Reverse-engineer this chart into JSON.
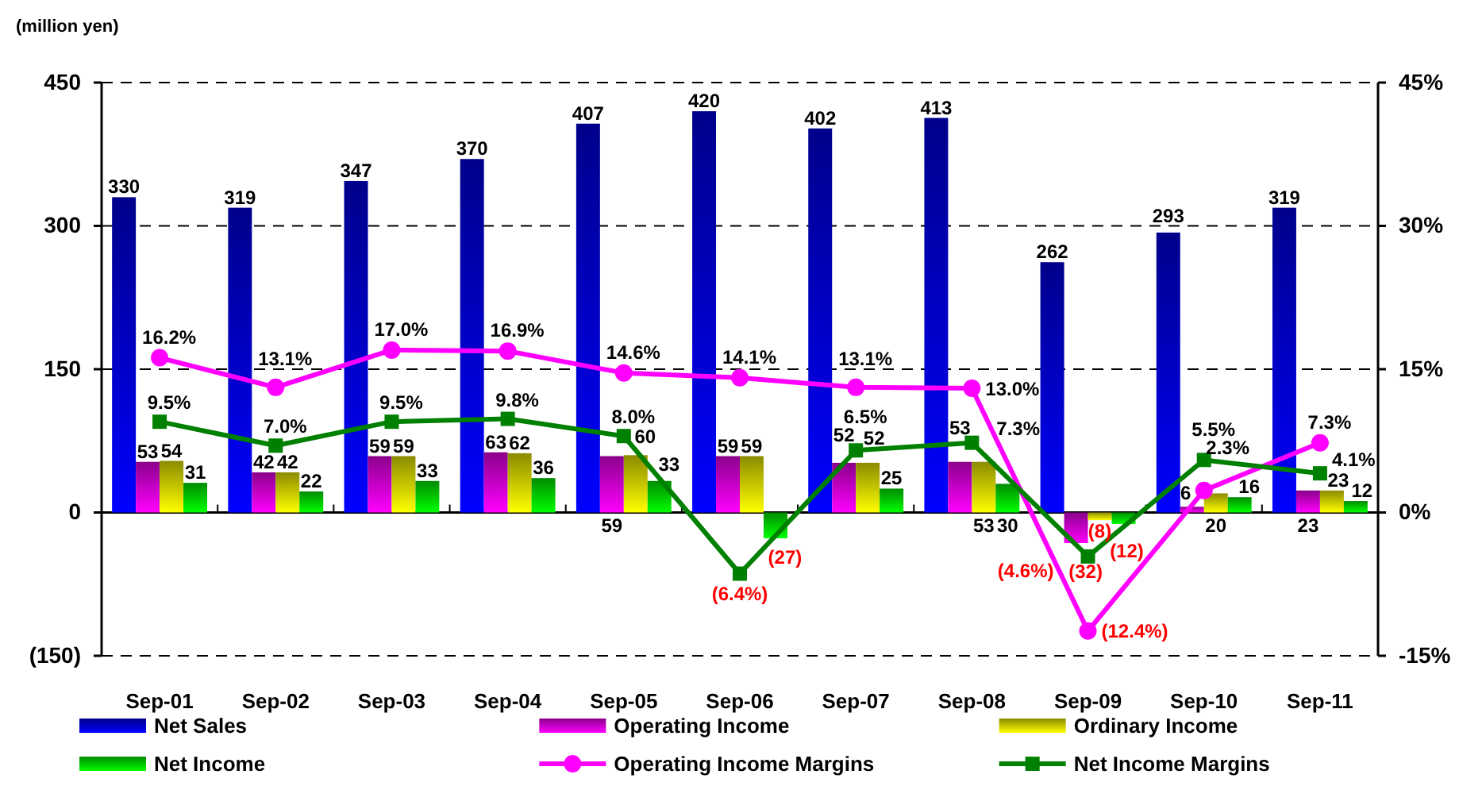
{
  "chart_data": {
    "type": "bar",
    "ylabel": "(million yen)",
    "categories": [
      "Sep-01",
      "Sep-02",
      "Sep-03",
      "Sep-04",
      "Sep-05",
      "Sep-06",
      "Sep-07",
      "Sep-08",
      "Sep-09",
      "Sep-10",
      "Sep-11"
    ],
    "series": [
      {
        "name": "Net Sales",
        "color": "#0000c0",
        "values": [
          330,
          319,
          347,
          370,
          407,
          420,
          402,
          413,
          262,
          293,
          319
        ],
        "value_labels": [
          "330",
          "319",
          "347",
          "370",
          "407",
          "420",
          "402",
          "413",
          "262",
          "293",
          "319"
        ]
      },
      {
        "name": "Operating Income",
        "color": "#c000c0",
        "values": [
          53,
          42,
          59,
          63,
          59,
          59,
          52,
          53,
          -32,
          6,
          23
        ],
        "value_labels": [
          "53",
          "42",
          "59",
          "63",
          "59",
          "59",
          "52",
          "53",
          "(32)",
          "6",
          "23"
        ]
      },
      {
        "name": "Ordinary Income",
        "color": "#c0c000",
        "values": [
          54,
          42,
          59,
          62,
          60,
          59,
          52,
          53,
          -8,
          20,
          23
        ],
        "value_labels": [
          "54",
          "42",
          "59",
          "62",
          "60",
          "59",
          "52",
          "53",
          "(8)",
          "20",
          "23"
        ]
      },
      {
        "name": "Net Income",
        "color": "#00c000",
        "values": [
          31,
          22,
          33,
          36,
          33,
          -27,
          25,
          30,
          -12,
          16,
          12
        ],
        "value_labels": [
          "31",
          "22",
          "33",
          "36",
          "33",
          "(27)",
          "25",
          "30",
          "(12)",
          "16",
          "12"
        ]
      },
      {
        "name": "Operating Income Margins",
        "type": "line",
        "axis": "y2",
        "marker": "circle",
        "color": "#ff00ff",
        "values": [
          16.2,
          13.1,
          17.0,
          16.9,
          14.6,
          14.1,
          13.1,
          13.0,
          -12.4,
          2.3,
          7.3
        ],
        "value_labels": [
          "16.2%",
          "13.1%",
          "17.0%",
          "16.9%",
          "14.6%",
          "14.1%",
          "13.1%",
          "13.0%",
          "(12.4%)",
          "2.3%",
          "7.3%"
        ]
      },
      {
        "name": "Net Income Margins",
        "type": "line",
        "axis": "y2",
        "marker": "square",
        "color": "#008000",
        "values": [
          9.5,
          7.0,
          9.5,
          9.8,
          8.0,
          -6.4,
          6.5,
          7.3,
          -4.6,
          5.5,
          4.1
        ],
        "value_labels": [
          "9.5%",
          "7.0%",
          "9.5%",
          "9.8%",
          "8.0%",
          "(6.4%)",
          "6.5%",
          "7.3%",
          "(4.6%)",
          "5.5%",
          "4.1%"
        ]
      }
    ],
    "ylim": [
      -150,
      450
    ],
    "yticks": [
      {
        "value": -150,
        "label": "(150)"
      },
      0,
      150,
      300,
      450
    ],
    "y2lim": [
      -15,
      45
    ],
    "y2ticks": [
      {
        "value": -15,
        "label": "-15%"
      },
      {
        "value": 0,
        "label": "0%"
      },
      {
        "value": 15,
        "label": "15%"
      },
      {
        "value": 30,
        "label": "30%"
      },
      {
        "value": 45,
        "label": "45%"
      }
    ],
    "grid": "y",
    "legend": "bottom"
  }
}
